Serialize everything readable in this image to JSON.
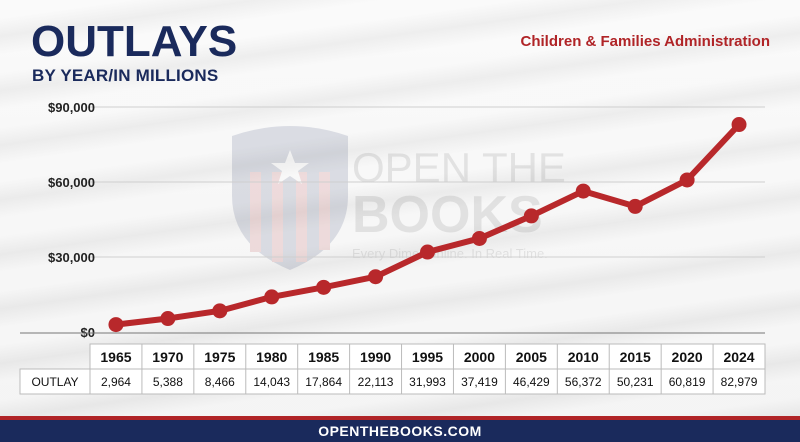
{
  "header": {
    "title": "OUTLAYS",
    "subtitle": "BY YEAR/IN MILLIONS",
    "agency": "Children & Families Administration"
  },
  "watermark": {
    "line1": "OPEN THE",
    "line2": "BOOKS",
    "tagline": "Every Dime. Online. In Real Time."
  },
  "footer": {
    "url": "OPENTHEBOOKS.COM"
  },
  "chart_data": {
    "type": "line",
    "title": "",
    "xlabel": "",
    "ylabel": "",
    "x": [
      "1965",
      "1970",
      "1975",
      "1980",
      "1985",
      "1990",
      "1995",
      "2000",
      "2005",
      "2010",
      "2015",
      "2020",
      "2024"
    ],
    "series": [
      {
        "name": "OUTLAY",
        "values": [
          2964,
          5388,
          8466,
          14043,
          17864,
          22113,
          31993,
          37419,
          46429,
          56372,
          50231,
          60819,
          82979
        ],
        "labels": [
          "2,964",
          "5,388",
          "8,466",
          "14,043",
          "17,864",
          "22,113",
          "31,993",
          "37,419",
          "46,429",
          "56,372",
          "50,231",
          "60,819",
          "82,979"
        ]
      }
    ],
    "ylim": [
      0,
      90000
    ],
    "yticks": [
      0,
      30000,
      60000,
      90000
    ],
    "ytick_labels": [
      "$0",
      "$30,000",
      "$60,000",
      "$90,000"
    ],
    "grid": true,
    "legend": "none",
    "colors": {
      "line": "#b8282b",
      "text": "#1a2a5c",
      "accent": "#b02427"
    }
  }
}
